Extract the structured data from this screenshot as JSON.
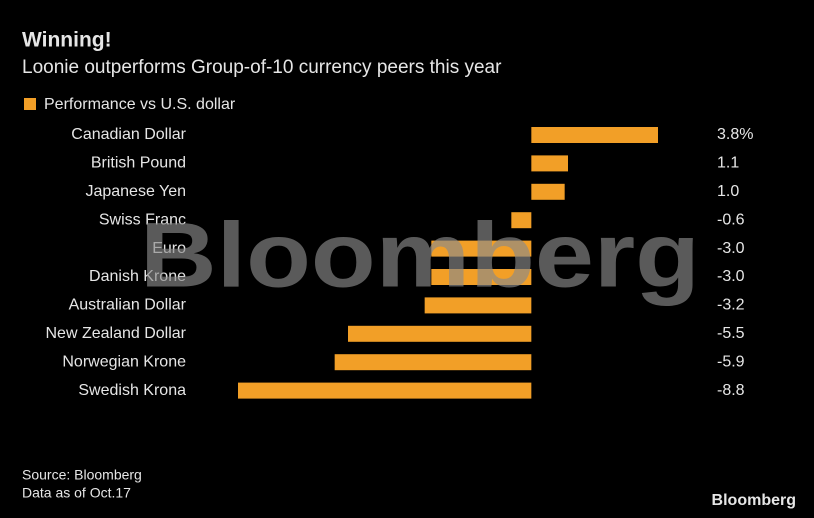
{
  "chart_data": {
    "type": "bar",
    "orientation": "horizontal",
    "title": "Winning!",
    "subtitle": "Loonie outperforms Group-of-10 currency peers this year",
    "categories": [
      "Canadian Dollar",
      "British Pound",
      "Japanese Yen",
      "Swiss Franc",
      "Euro",
      "Danish Krone",
      "Australian Dollar",
      "New Zealand Dollar",
      "Norwegian Krone",
      "Swedish Krona"
    ],
    "series": [
      {
        "name": "Performance vs U.S. dollar",
        "color": "#f29f27",
        "values": [
          3.8,
          1.1,
          1.0,
          -0.6,
          -3.0,
          -3.0,
          -3.2,
          -5.5,
          -5.9,
          -8.8
        ],
        "value_labels": [
          "3.8%",
          "1.1",
          "1.0",
          "-0.6",
          "-3.0",
          "-3.0",
          "-3.2",
          "-5.5",
          "-5.9",
          "-8.8"
        ]
      }
    ],
    "legend": "top-left",
    "source": "Source: Bloomberg",
    "note": "Data as of Oct.17",
    "watermark": "Bloomberg",
    "logo": "Bloomberg"
  }
}
